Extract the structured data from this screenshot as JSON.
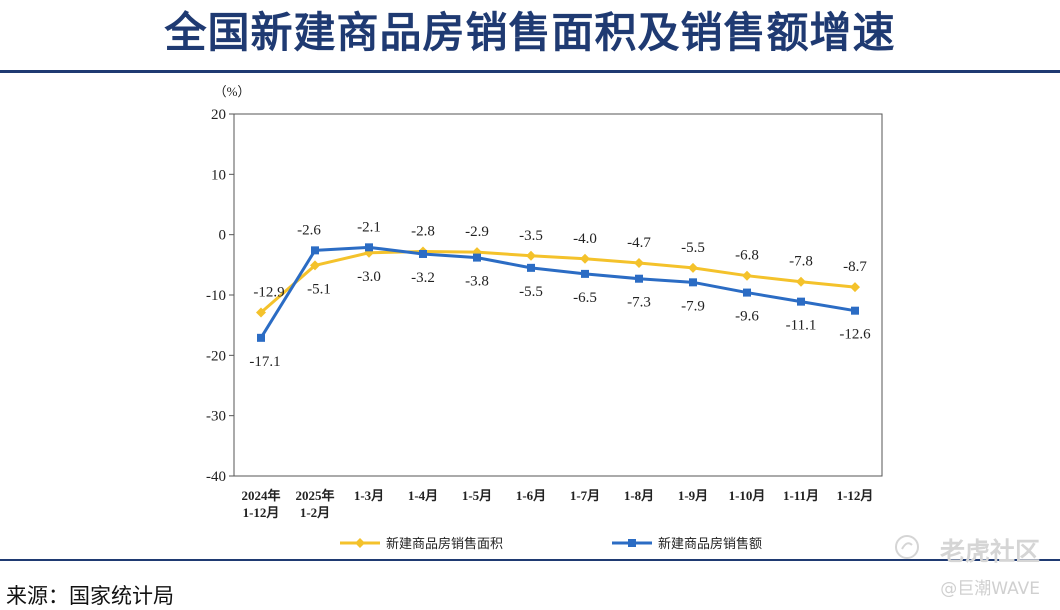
{
  "page": {
    "title": "全国新建商品房销售面积及销售额增速",
    "source": "来源：国家统计局",
    "watermark": "老虎社区",
    "watermark_credit": "@巨潮WAVE"
  },
  "chart_data": {
    "type": "line",
    "unit_label": "（%）",
    "categories": [
      [
        "2024年",
        "1-12月"
      ],
      [
        "2025年",
        "1-2月"
      ],
      [
        "1-3月"
      ],
      [
        "1-4月"
      ],
      [
        "1-5月"
      ],
      [
        "1-6月"
      ],
      [
        "1-7月"
      ],
      [
        "1-8月"
      ],
      [
        "1-9月"
      ],
      [
        "1-10月"
      ],
      [
        "1-11月"
      ],
      [
        "1-12月"
      ]
    ],
    "ylim": [
      -40,
      20
    ],
    "yticks": [
      20,
      10,
      0,
      -10,
      -20,
      -30,
      -40
    ],
    "series": [
      {
        "name": "新建商品房销售面积",
        "color": "#f4c22b",
        "marker": "diamond",
        "values": [
          -12.9,
          -5.1,
          -3.0,
          -2.8,
          -2.9,
          -3.5,
          -4.0,
          -4.7,
          -5.5,
          -6.8,
          -7.8,
          -8.7
        ],
        "labels": [
          "-12.9",
          "-5.1",
          "-3.0",
          "-2.8",
          "-2.9",
          "-3.5",
          "-4.0",
          "-4.7",
          "-5.5",
          "-6.8",
          "-7.8",
          "-8.7"
        ]
      },
      {
        "name": "新建商品房销售额",
        "color": "#2b6cc4",
        "marker": "square",
        "values": [
          -17.1,
          -2.6,
          -2.1,
          -3.2,
          -3.8,
          -5.5,
          -6.5,
          -7.3,
          -7.9,
          -9.6,
          -11.1,
          -12.6
        ],
        "labels": [
          "-17.1",
          "-2.6",
          "-2.1",
          "-3.2",
          "-3.8",
          "-5.5",
          "-6.5",
          "-7.3",
          "-7.9",
          "-9.6",
          "-11.1",
          "-12.6"
        ]
      }
    ],
    "grid": false,
    "legend_position": "bottom"
  }
}
